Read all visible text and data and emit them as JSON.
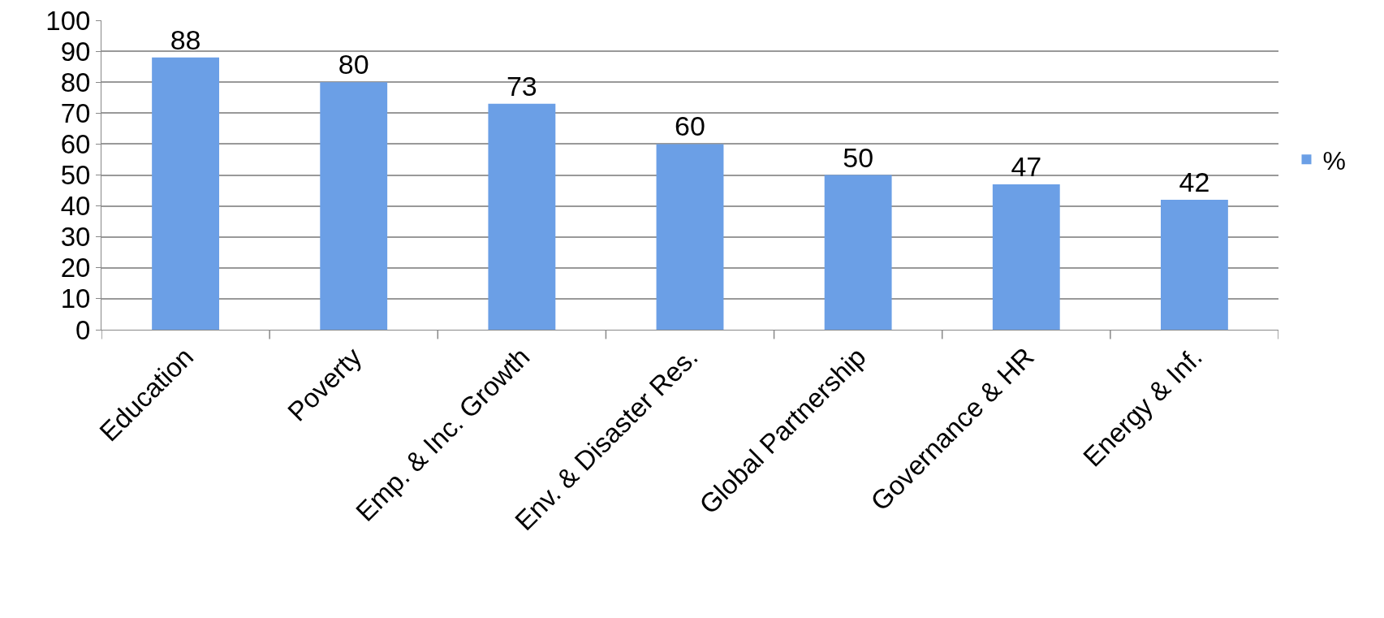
{
  "chart_data": {
    "type": "bar",
    "categories": [
      "Education",
      "Poverty",
      "Emp. & Inc. Growth",
      "Env. & Disaster Res.",
      "Global Partnership",
      "Governance & HR",
      "Energy & Inf."
    ],
    "series": [
      {
        "name": "%",
        "color": "#6b9fe6",
        "values": [
          88,
          80,
          73,
          60,
          50,
          47,
          42
        ]
      }
    ],
    "ylim": [
      0,
      100
    ],
    "yticks": [
      0,
      10,
      20,
      30,
      40,
      50,
      60,
      70,
      80,
      90,
      100
    ],
    "grid": "y",
    "legend": "right",
    "data_labels": true
  }
}
